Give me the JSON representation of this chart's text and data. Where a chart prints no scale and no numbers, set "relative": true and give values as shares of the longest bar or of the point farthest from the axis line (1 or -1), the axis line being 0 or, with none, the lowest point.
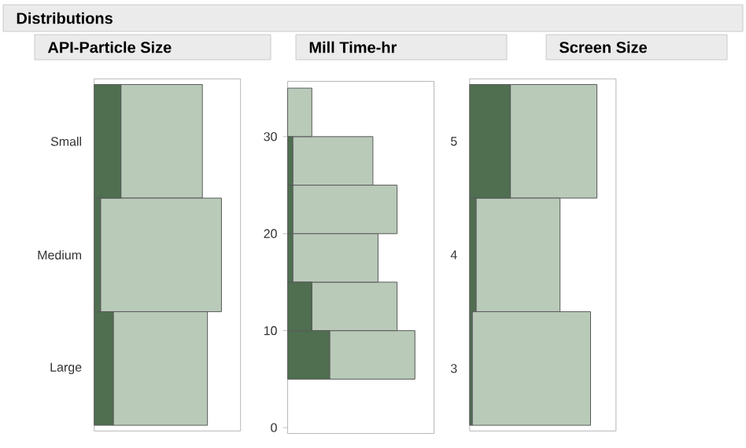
{
  "chart_data": [
    {
      "type": "bar",
      "orientation": "horizontal",
      "stacked": true,
      "relative": true,
      "title": "API-Particle Size",
      "annotations": [
        "Distributions"
      ],
      "categories": [
        "Small",
        "Medium",
        "Large"
      ],
      "series": [
        {
          "color": "#4f6f50",
          "values": [
            0.21,
            0.05,
            0.15
          ]
        },
        {
          "color": "#b9cab9",
          "values": [
            0.64,
            0.95,
            0.74
          ]
        }
      ]
    },
    {
      "type": "bar",
      "orientation": "horizontal",
      "stacked": true,
      "relative": true,
      "title": "Mill Time-hr",
      "x": [
        7.5,
        12.5,
        17.5,
        22.5,
        27.5,
        32.5
      ],
      "ylim": [
        -0.6,
        35.7
      ],
      "yticks": [
        0,
        10,
        20,
        30
      ],
      "series": [
        {
          "color": "#4f6f50",
          "values": [
            0.33,
            0.19,
            0.04,
            0.04,
            0.04,
            0
          ]
        },
        {
          "color": "#b9cab9",
          "values": [
            0.67,
            0.67,
            0.67,
            0.82,
            0.63,
            0.19
          ]
        }
      ]
    },
    {
      "type": "bar",
      "orientation": "horizontal",
      "stacked": true,
      "relative": true,
      "title": "Screen Size",
      "categories": [
        "5",
        "4",
        "3"
      ],
      "series": [
        {
          "color": "#4f6f50",
          "values": [
            0.32,
            0.05,
            0.02
          ]
        },
        {
          "color": "#b9cab9",
          "values": [
            0.68,
            0.66,
            0.93
          ]
        }
      ]
    }
  ]
}
